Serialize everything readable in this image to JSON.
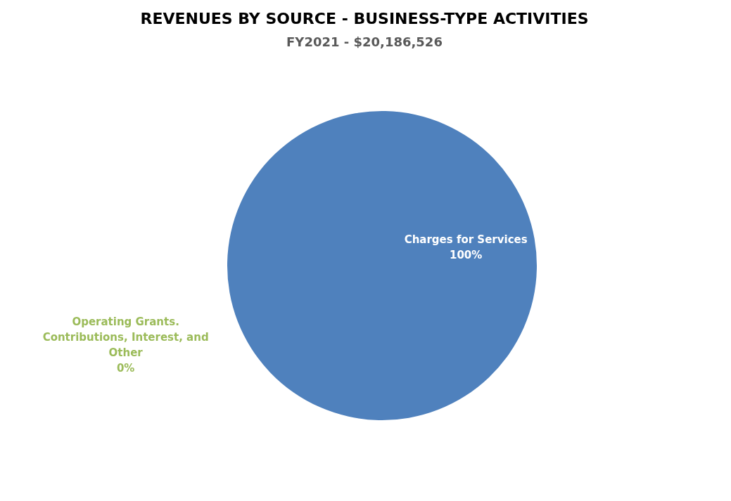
{
  "chart_data": {
    "type": "pie",
    "title": "REVENUES BY SOURCE - BUSINESS-TYPE ACTIVITIES",
    "subtitle": "FY2021 - $20,186,526",
    "categories": [
      "Charges for Services",
      "Operating Grants. Contributions, Interest, and Other"
    ],
    "values": [
      100,
      0
    ],
    "colors": [
      "#4f81bd",
      "#9bbb59"
    ],
    "value_labels": [
      "100%",
      "0%"
    ]
  }
}
